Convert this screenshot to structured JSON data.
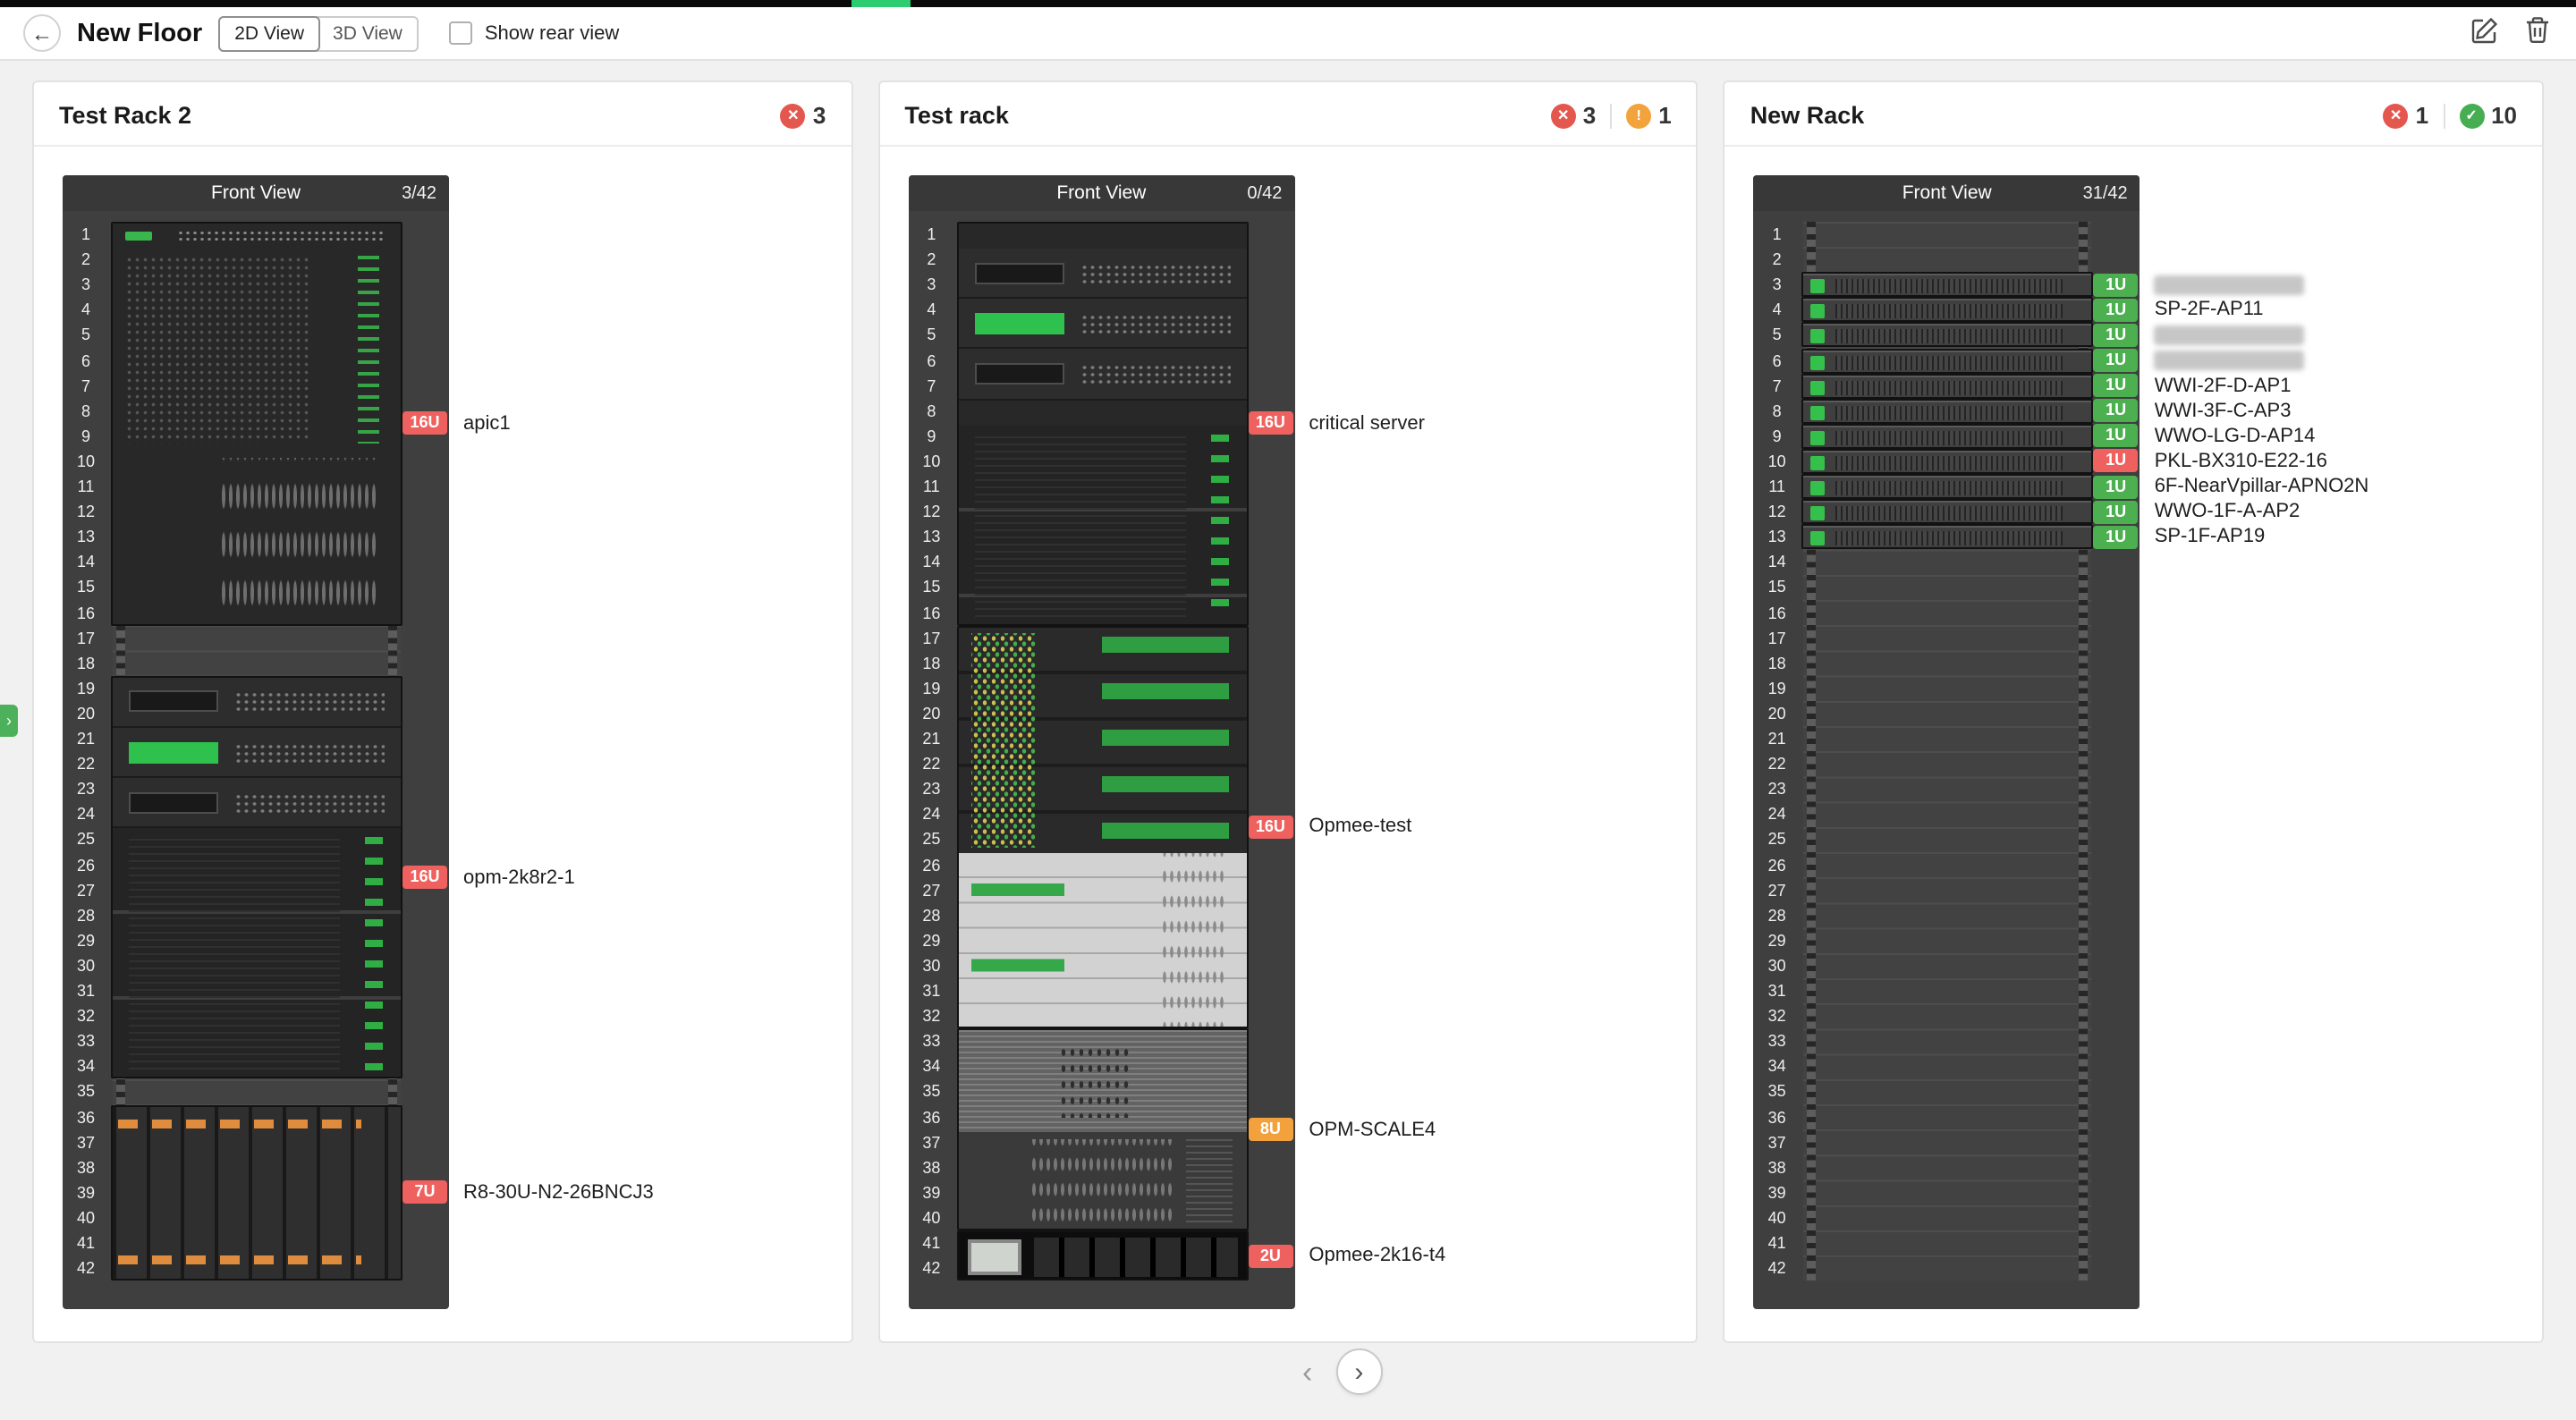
{
  "header": {
    "title": "New Floor",
    "view_options": [
      {
        "label": "2D View",
        "selected": true
      },
      {
        "label": "3D View",
        "selected": false
      }
    ],
    "show_rear_view": {
      "label": "Show rear view",
      "checked": false
    }
  },
  "colors": {
    "error": "#e4574f",
    "warn": "#f2a33c",
    "ok": "#47ad53",
    "badge_error": "#ee615e",
    "badge_warn": "#f2a13c",
    "badge_ok": "#4caf50",
    "progress": "#2ecc71"
  },
  "rack_view": {
    "front_view_label": "Front View",
    "total_units": 42
  },
  "racks": [
    {
      "title": "Test Rack 2",
      "stats": [
        {
          "kind": "error",
          "count": 3
        }
      ],
      "occupancy": "3/42",
      "devices": [
        {
          "label": "apic1",
          "u": "16U",
          "start": 1,
          "size": 16,
          "severity": "error",
          "segments": [
            {
              "style": "ports-row",
              "rows": 1
            },
            {
              "style": "vents-leds",
              "rows": 8
            },
            {
              "style": "sparse-ports",
              "rows": 7
            }
          ]
        },
        {
          "label": "opm-2k8r2-1",
          "u": "16U",
          "start": 19,
          "size": 16,
          "severity": "error",
          "segments": [
            {
              "style": "switch-dark",
              "rows": 2
            },
            {
              "style": "switch-green",
              "rows": 2
            },
            {
              "style": "switch-dark",
              "rows": 2
            },
            {
              "style": "panel-leds",
              "rows": 10
            }
          ]
        },
        {
          "label": "R8-30U-N2-26BNCJ3",
          "u": "7U",
          "start": 36,
          "size": 7,
          "severity": "error",
          "segments": [
            {
              "style": "blade",
              "rows": 7
            }
          ]
        }
      ]
    },
    {
      "title": "Test rack",
      "stats": [
        {
          "kind": "error",
          "count": 3
        },
        {
          "kind": "warn",
          "count": 1
        }
      ],
      "occupancy": "0/42",
      "devices": [
        {
          "label": "critical server",
          "u": "16U",
          "start": 1,
          "size": 16,
          "severity": "error",
          "segments": [
            {
              "style": "plain",
              "rows": 1
            },
            {
              "style": "switch-dark",
              "rows": 2
            },
            {
              "style": "switch-green",
              "rows": 2
            },
            {
              "style": "switch-dark",
              "rows": 2
            },
            {
              "style": "plain",
              "rows": 1
            },
            {
              "style": "panel-leds",
              "rows": 8
            }
          ]
        },
        {
          "label": "Opmee-test",
          "u": "16U",
          "start": 17,
          "size": 16,
          "severity": "error",
          "segments": [
            {
              "style": "green-striped",
              "rows": 9
            },
            {
              "style": "gray-rows",
              "rows": 7
            }
          ]
        },
        {
          "label": "OPM-SCALE4",
          "u": "8U",
          "start": 33,
          "size": 8,
          "severity": "warn",
          "segments": [
            {
              "style": "fine-lines",
              "rows": 4
            },
            {
              "style": "sparse-ports-gray",
              "rows": 4
            }
          ]
        },
        {
          "label": "Opmee-2k16-t4",
          "u": "2U",
          "start": 41,
          "size": 2,
          "severity": "error",
          "segments": [
            {
              "style": "psu",
              "rows": 2
            }
          ]
        }
      ]
    },
    {
      "title": "New Rack",
      "stats": [
        {
          "kind": "error",
          "count": 1
        },
        {
          "kind": "ok",
          "count": 10
        }
      ],
      "occupancy": "31/42",
      "devices": [
        {
          "label": "",
          "redacted": true,
          "u": "1U",
          "start": 3,
          "size": 1,
          "severity": "ok",
          "segments": [
            {
              "style": "slim-server",
              "rows": 1
            }
          ]
        },
        {
          "label": "SP-2F-AP11",
          "u": "1U",
          "start": 4,
          "size": 1,
          "severity": "ok",
          "segments": [
            {
              "style": "slim-server",
              "rows": 1
            }
          ]
        },
        {
          "label": "",
          "redacted": true,
          "u": "1U",
          "start": 5,
          "size": 1,
          "severity": "ok",
          "segments": [
            {
              "style": "slim-server",
              "rows": 1
            }
          ]
        },
        {
          "label": "",
          "redacted": true,
          "u": "1U",
          "start": 6,
          "size": 1,
          "severity": "ok",
          "segments": [
            {
              "style": "slim-server",
              "rows": 1
            }
          ]
        },
        {
          "label": "WWI-2F-D-AP1",
          "u": "1U",
          "start": 7,
          "size": 1,
          "severity": "ok",
          "segments": [
            {
              "style": "slim-server",
              "rows": 1
            }
          ]
        },
        {
          "label": "WWI-3F-C-AP3",
          "u": "1U",
          "start": 8,
          "size": 1,
          "severity": "ok",
          "segments": [
            {
              "style": "slim-server",
              "rows": 1
            }
          ]
        },
        {
          "label": "WWO-LG-D-AP14",
          "u": "1U",
          "start": 9,
          "size": 1,
          "severity": "ok",
          "segments": [
            {
              "style": "slim-server",
              "rows": 1
            }
          ]
        },
        {
          "label": "PKL-BX310-E22-16",
          "u": "1U",
          "start": 10,
          "size": 1,
          "severity": "error",
          "segments": [
            {
              "style": "slim-server",
              "rows": 1
            }
          ]
        },
        {
          "label": "6F-NearVpillar-APNO2N",
          "u": "1U",
          "start": 11,
          "size": 1,
          "severity": "ok",
          "segments": [
            {
              "style": "slim-server",
              "rows": 1
            }
          ]
        },
        {
          "label": "WWO-1F-A-AP2",
          "u": "1U",
          "start": 12,
          "size": 1,
          "severity": "ok",
          "segments": [
            {
              "style": "slim-server",
              "rows": 1
            }
          ]
        },
        {
          "label": "SP-1F-AP19",
          "u": "1U",
          "start": 13,
          "size": 1,
          "severity": "ok",
          "segments": [
            {
              "style": "slim-server",
              "rows": 1
            }
          ]
        }
      ]
    }
  ],
  "pagination": {
    "prev": "‹",
    "next": "›"
  },
  "side_tab": {
    "glyph": "›"
  }
}
